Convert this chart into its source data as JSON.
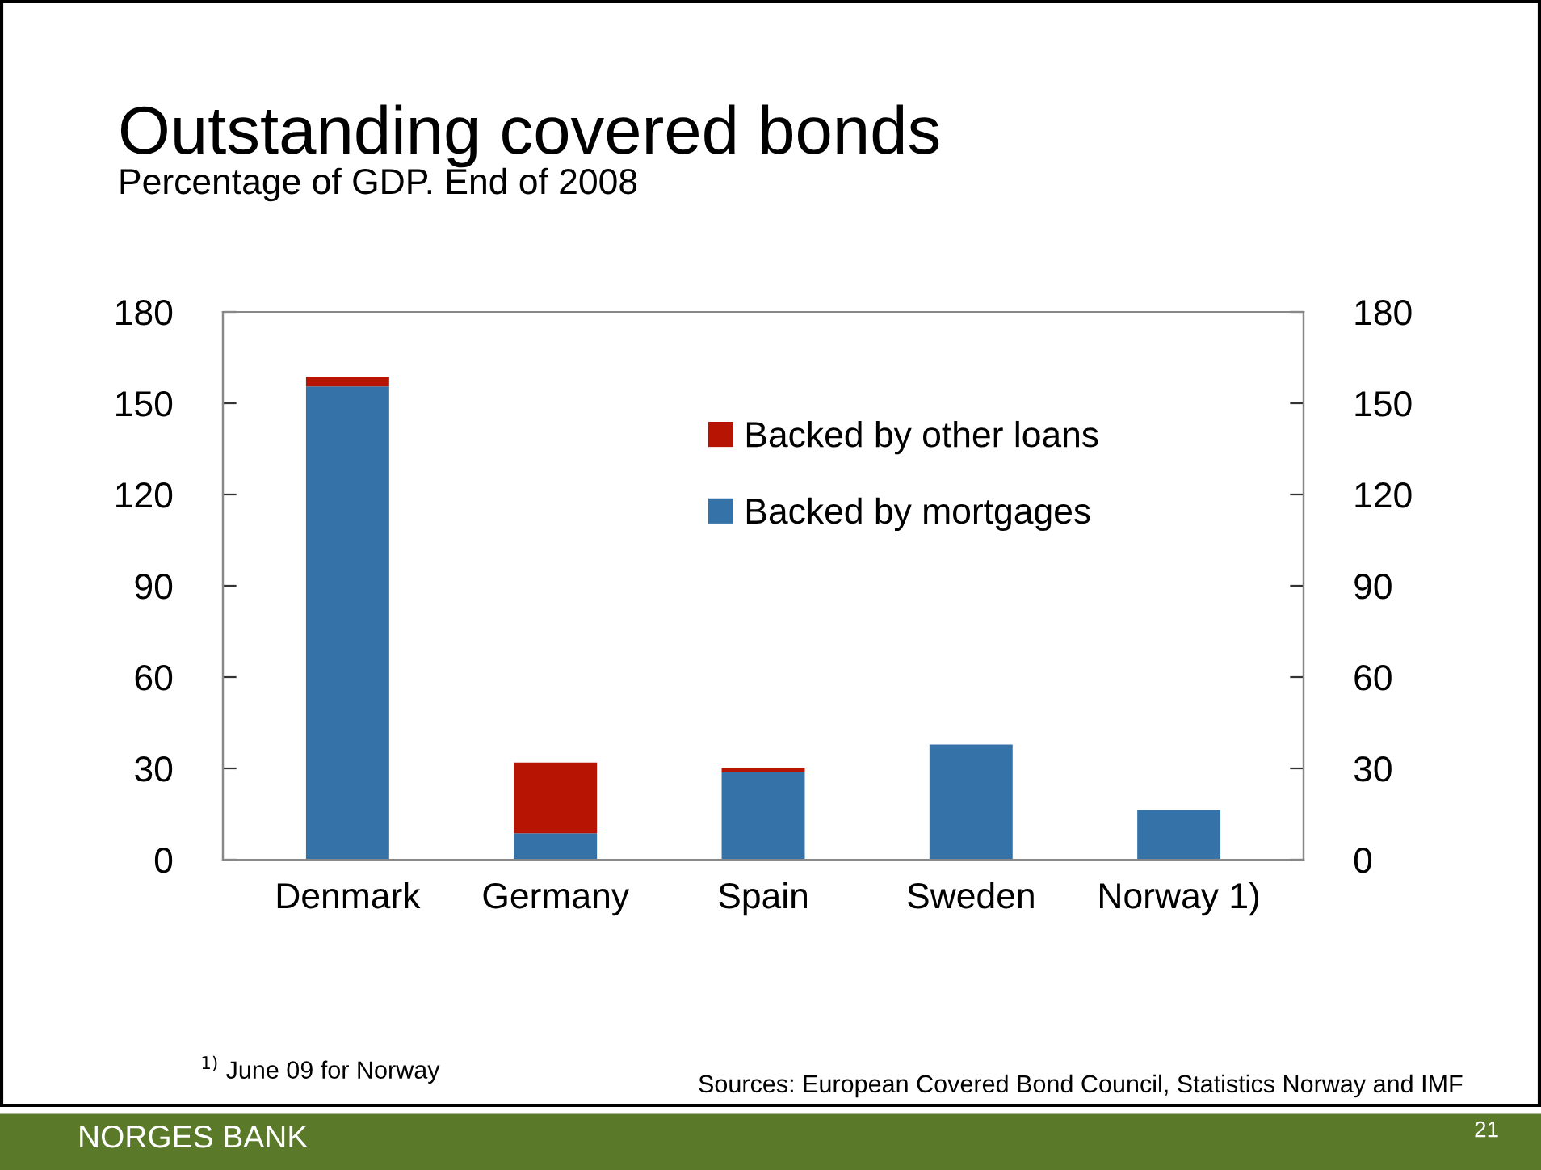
{
  "chart_data": {
    "type": "bar",
    "title": "Outstanding covered bonds",
    "subtitle": "Percentage of GDP. End of 2008",
    "categories": [
      "Denmark",
      "Germany",
      "Spain",
      "Sweden",
      "Norway 1)"
    ],
    "stacked": true,
    "series": [
      {
        "name": "Backed by mortgages",
        "color": "#3572a8",
        "values": [
          155.5,
          8.7,
          28.7,
          37.8,
          16.3
        ]
      },
      {
        "name": "Backed by other loans",
        "color": "#b81404",
        "values": [
          3.2,
          23.2,
          1.5,
          0,
          0
        ]
      }
    ],
    "ylim": [
      0,
      180
    ],
    "yticks": [
      0,
      30,
      60,
      90,
      120,
      150,
      180
    ],
    "y2lim": [
      0,
      180
    ],
    "y2ticks": [
      0,
      30,
      60,
      90,
      120,
      150,
      180
    ],
    "grid": false,
    "legend": "top",
    "annotations": [
      "$^{1)}$ June 09 for Norway",
      "Sources: European Covered Bond Council, Statistics Norway and IMF",
      "NORGES BANK",
      "21"
    ]
  }
}
